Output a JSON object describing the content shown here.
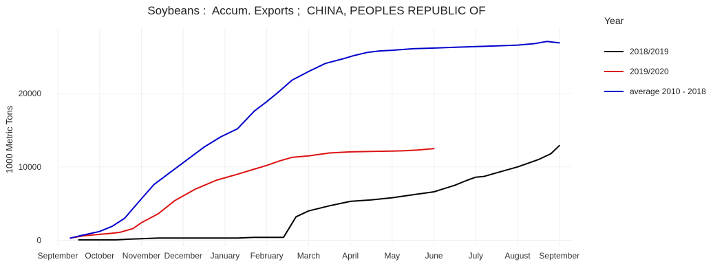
{
  "chart_data": {
    "type": "line",
    "title": "Soybeans :  Accum. Exports ;  CHINA, PEOPLES REPUBLIC OF",
    "xlabel": "",
    "ylabel": "1000 Metric Tons",
    "x_tick_labels": [
      "September",
      "October",
      "November",
      "December",
      "January",
      "February",
      "March",
      "April",
      "May",
      "June",
      "July",
      "August",
      "September"
    ],
    "y_ticks": [
      0,
      10000,
      20000
    ],
    "ylim": [
      -800,
      29000
    ],
    "xlim": [
      0,
      12.3
    ],
    "grid": true,
    "legend": {
      "title": "Year",
      "placement": "right"
    },
    "series": [
      {
        "name": "2018/2019",
        "color": "#000000",
        "x": [
          0.5,
          1.0,
          1.4,
          1.7,
          2.0,
          2.4,
          2.8,
          3.3,
          3.8,
          4.3,
          4.7,
          5.2,
          5.4,
          5.7,
          6.0,
          6.5,
          7.0,
          7.5,
          8.0,
          8.5,
          9.0,
          9.5,
          9.8,
          10.0,
          10.2,
          10.5,
          11.0,
          11.5,
          11.8,
          12.0
        ],
        "y": [
          50,
          50,
          50,
          150,
          200,
          300,
          300,
          300,
          300,
          300,
          400,
          400,
          400,
          3200,
          4000,
          4700,
          5300,
          5500,
          5800,
          6200,
          6600,
          7500,
          8200,
          8600,
          8700,
          9200,
          10000,
          11000,
          11800,
          12900
        ]
      },
      {
        "name": "2019/2020",
        "color": "#dd1111",
        "x": [
          0.3,
          0.6,
          1.0,
          1.3,
          1.5,
          1.8,
          2.0,
          2.4,
          2.8,
          3.3,
          3.8,
          4.3,
          4.7,
          5.0,
          5.3,
          5.6,
          6.0,
          6.5,
          7.0,
          7.5,
          8.0,
          8.3,
          8.6,
          9.0
        ],
        "y": [
          300,
          600,
          800,
          950,
          1100,
          1600,
          2400,
          3600,
          5400,
          7000,
          8200,
          9000,
          9700,
          10200,
          10800,
          11300,
          11500,
          11900,
          12050,
          12100,
          12150,
          12200,
          12300,
          12500
        ]
      },
      {
        "name": "average 2010 - 2018",
        "color": "#0000cc",
        "x": [
          0.3,
          0.6,
          1.0,
          1.3,
          1.6,
          1.9,
          2.3,
          2.7,
          3.1,
          3.5,
          3.9,
          4.3,
          4.7,
          5.0,
          5.3,
          5.6,
          6.0,
          6.4,
          6.8,
          7.1,
          7.4,
          7.7,
          8.0,
          8.5,
          9.0,
          9.5,
          10.0,
          10.5,
          11.0,
          11.4,
          11.7,
          12.0
        ],
        "y": [
          300,
          700,
          1200,
          1900,
          3000,
          5000,
          7600,
          9300,
          11000,
          12700,
          14100,
          15200,
          17600,
          18900,
          20300,
          21800,
          23000,
          24100,
          24700,
          25200,
          25600,
          25800,
          25900,
          26100,
          26200,
          26300,
          26400,
          26500,
          26600,
          26800,
          27100,
          26900
        ]
      }
    ]
  }
}
